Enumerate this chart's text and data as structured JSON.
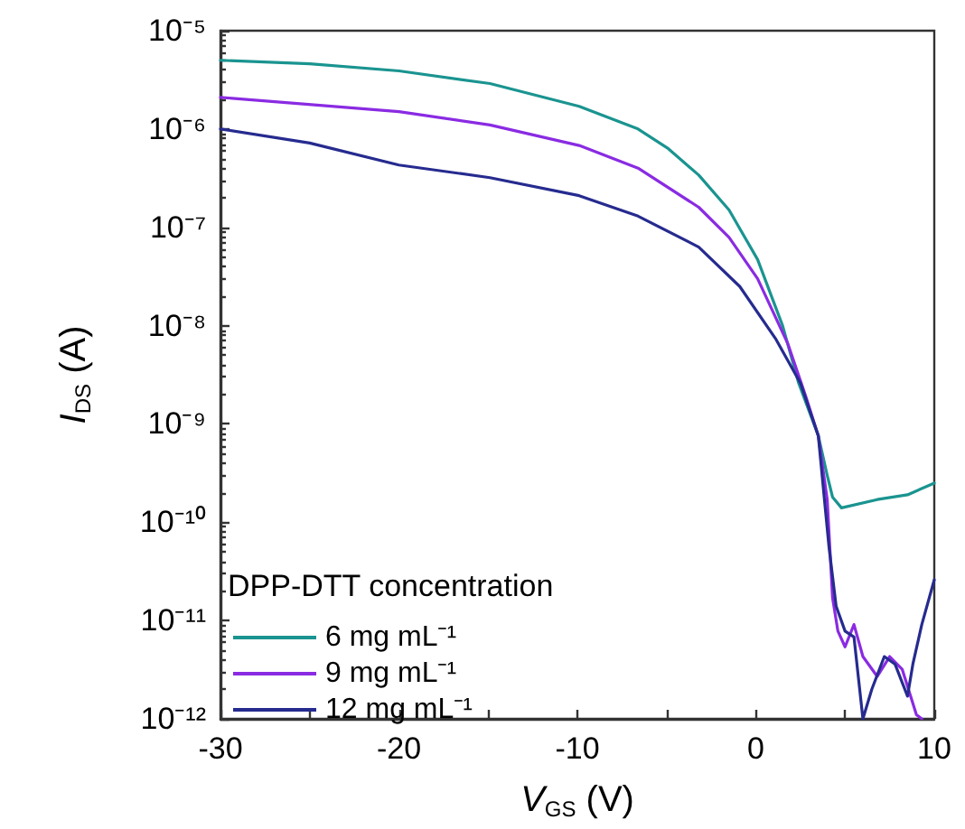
{
  "chart_data": {
    "type": "line",
    "xlabel": "V$_{GS}$ (V)",
    "ylabel": "I$_{DS}$ (A)",
    "legend_title": "DPP-DTT concentration",
    "legend": "bottom left",
    "log": "y",
    "grid": false,
    "marker": "none",
    "line_style": "solid",
    "xlim": [
      -30,
      10
    ],
    "xticks": [
      -30,
      {
        "value": -25,
        "label": null
      },
      -20,
      {
        "value": -15,
        "label": null
      },
      -10,
      {
        "value": -5,
        "label": null
      },
      0,
      {
        "value": 5,
        "label": null
      },
      10
    ],
    "ylim": [
      1e-12,
      1e-05
    ],
    "yticks": [
      {
        "value": 1e-12,
        "label": "10⁻¹²"
      },
      {
        "value": 1e-11,
        "label": "10⁻¹¹"
      },
      {
        "value": 1e-10,
        "label": "10⁻¹⁰"
      },
      {
        "value": 1e-09,
        "label": "10⁻⁹"
      },
      {
        "value": 1e-08,
        "label": "10⁻⁸"
      },
      {
        "value": 1e-07,
        "label": "10⁻⁷"
      },
      {
        "value": 1e-06,
        "label": "10⁻⁶"
      },
      {
        "value": 1e-05,
        "label": "10⁻⁵"
      }
    ],
    "series": [
      {
        "name": "6 mg mL⁻¹",
        "color": "#1a9490",
        "x": [
          -30,
          -25,
          -20,
          -14.9,
          -9.9,
          -6.6,
          -4.9,
          -3.2,
          -1.5,
          0.1,
          1.5,
          2.4,
          3.5,
          4.0,
          4.3,
          4.8,
          6.8,
          8.5,
          10
        ],
        "values": [
          5e-06,
          4.6e-06,
          3.9e-06,
          2.9e-06,
          1.7e-06,
          1e-06,
          6.3e-07,
          3.4e-07,
          1.5e-07,
          4.7e-08,
          1e-08,
          2.6e-09,
          7.6e-10,
          3e-10,
          1.8e-10,
          1.4e-10,
          1.7e-10,
          1.9e-10,
          2.5e-10
        ]
      },
      {
        "name": "9 mg mL⁻¹",
        "color": "#8a2be2",
        "x": [
          -30,
          -20,
          -14.9,
          -9.9,
          -6.6,
          -3.2,
          -1.5,
          0.1,
          1.8,
          2.8,
          3.5,
          4.0,
          4.3,
          4.6,
          5.0,
          5.5,
          6.0,
          6.8,
          7.5,
          8.2,
          9.0,
          9.3
        ],
        "values": [
          2.1e-06,
          1.5e-06,
          1.1e-06,
          6.8e-07,
          4e-07,
          1.6e-07,
          7.9e-08,
          3e-08,
          6.5e-09,
          1.9e-09,
          7.6e-10,
          1.7e-10,
          1.7e-11,
          7.8e-12,
          5.4e-12,
          9.1e-12,
          4.3e-12,
          2.7e-12,
          4.3e-12,
          3.2e-12,
          1.1e-12,
          1e-12
        ]
      },
      {
        "name": "12 mg mL⁻¹",
        "color": "#262b8f",
        "x": [
          -30,
          -25,
          -20,
          -14.9,
          -9.9,
          -6.6,
          -3.2,
          -0.9,
          1.1,
          2.5,
          3.5,
          4.1,
          4.5,
          5.0,
          5.5,
          6.0,
          6.5,
          7.2,
          7.8,
          8.5,
          8.8,
          9.3,
          10
        ],
        "values": [
          1e-06,
          7.2e-07,
          4.3e-07,
          3.2e-07,
          2.1e-07,
          1.3e-07,
          6.3e-08,
          2.5e-08,
          7.4e-09,
          2.6e-09,
          7.6e-10,
          5.6e-11,
          1.4e-11,
          7.8e-12,
          6.8e-12,
          1e-12,
          2e-12,
          4.3e-12,
          3.6e-12,
          1.7e-12,
          3.6e-12,
          9.1e-12,
          2.6e-11
        ]
      }
    ]
  }
}
